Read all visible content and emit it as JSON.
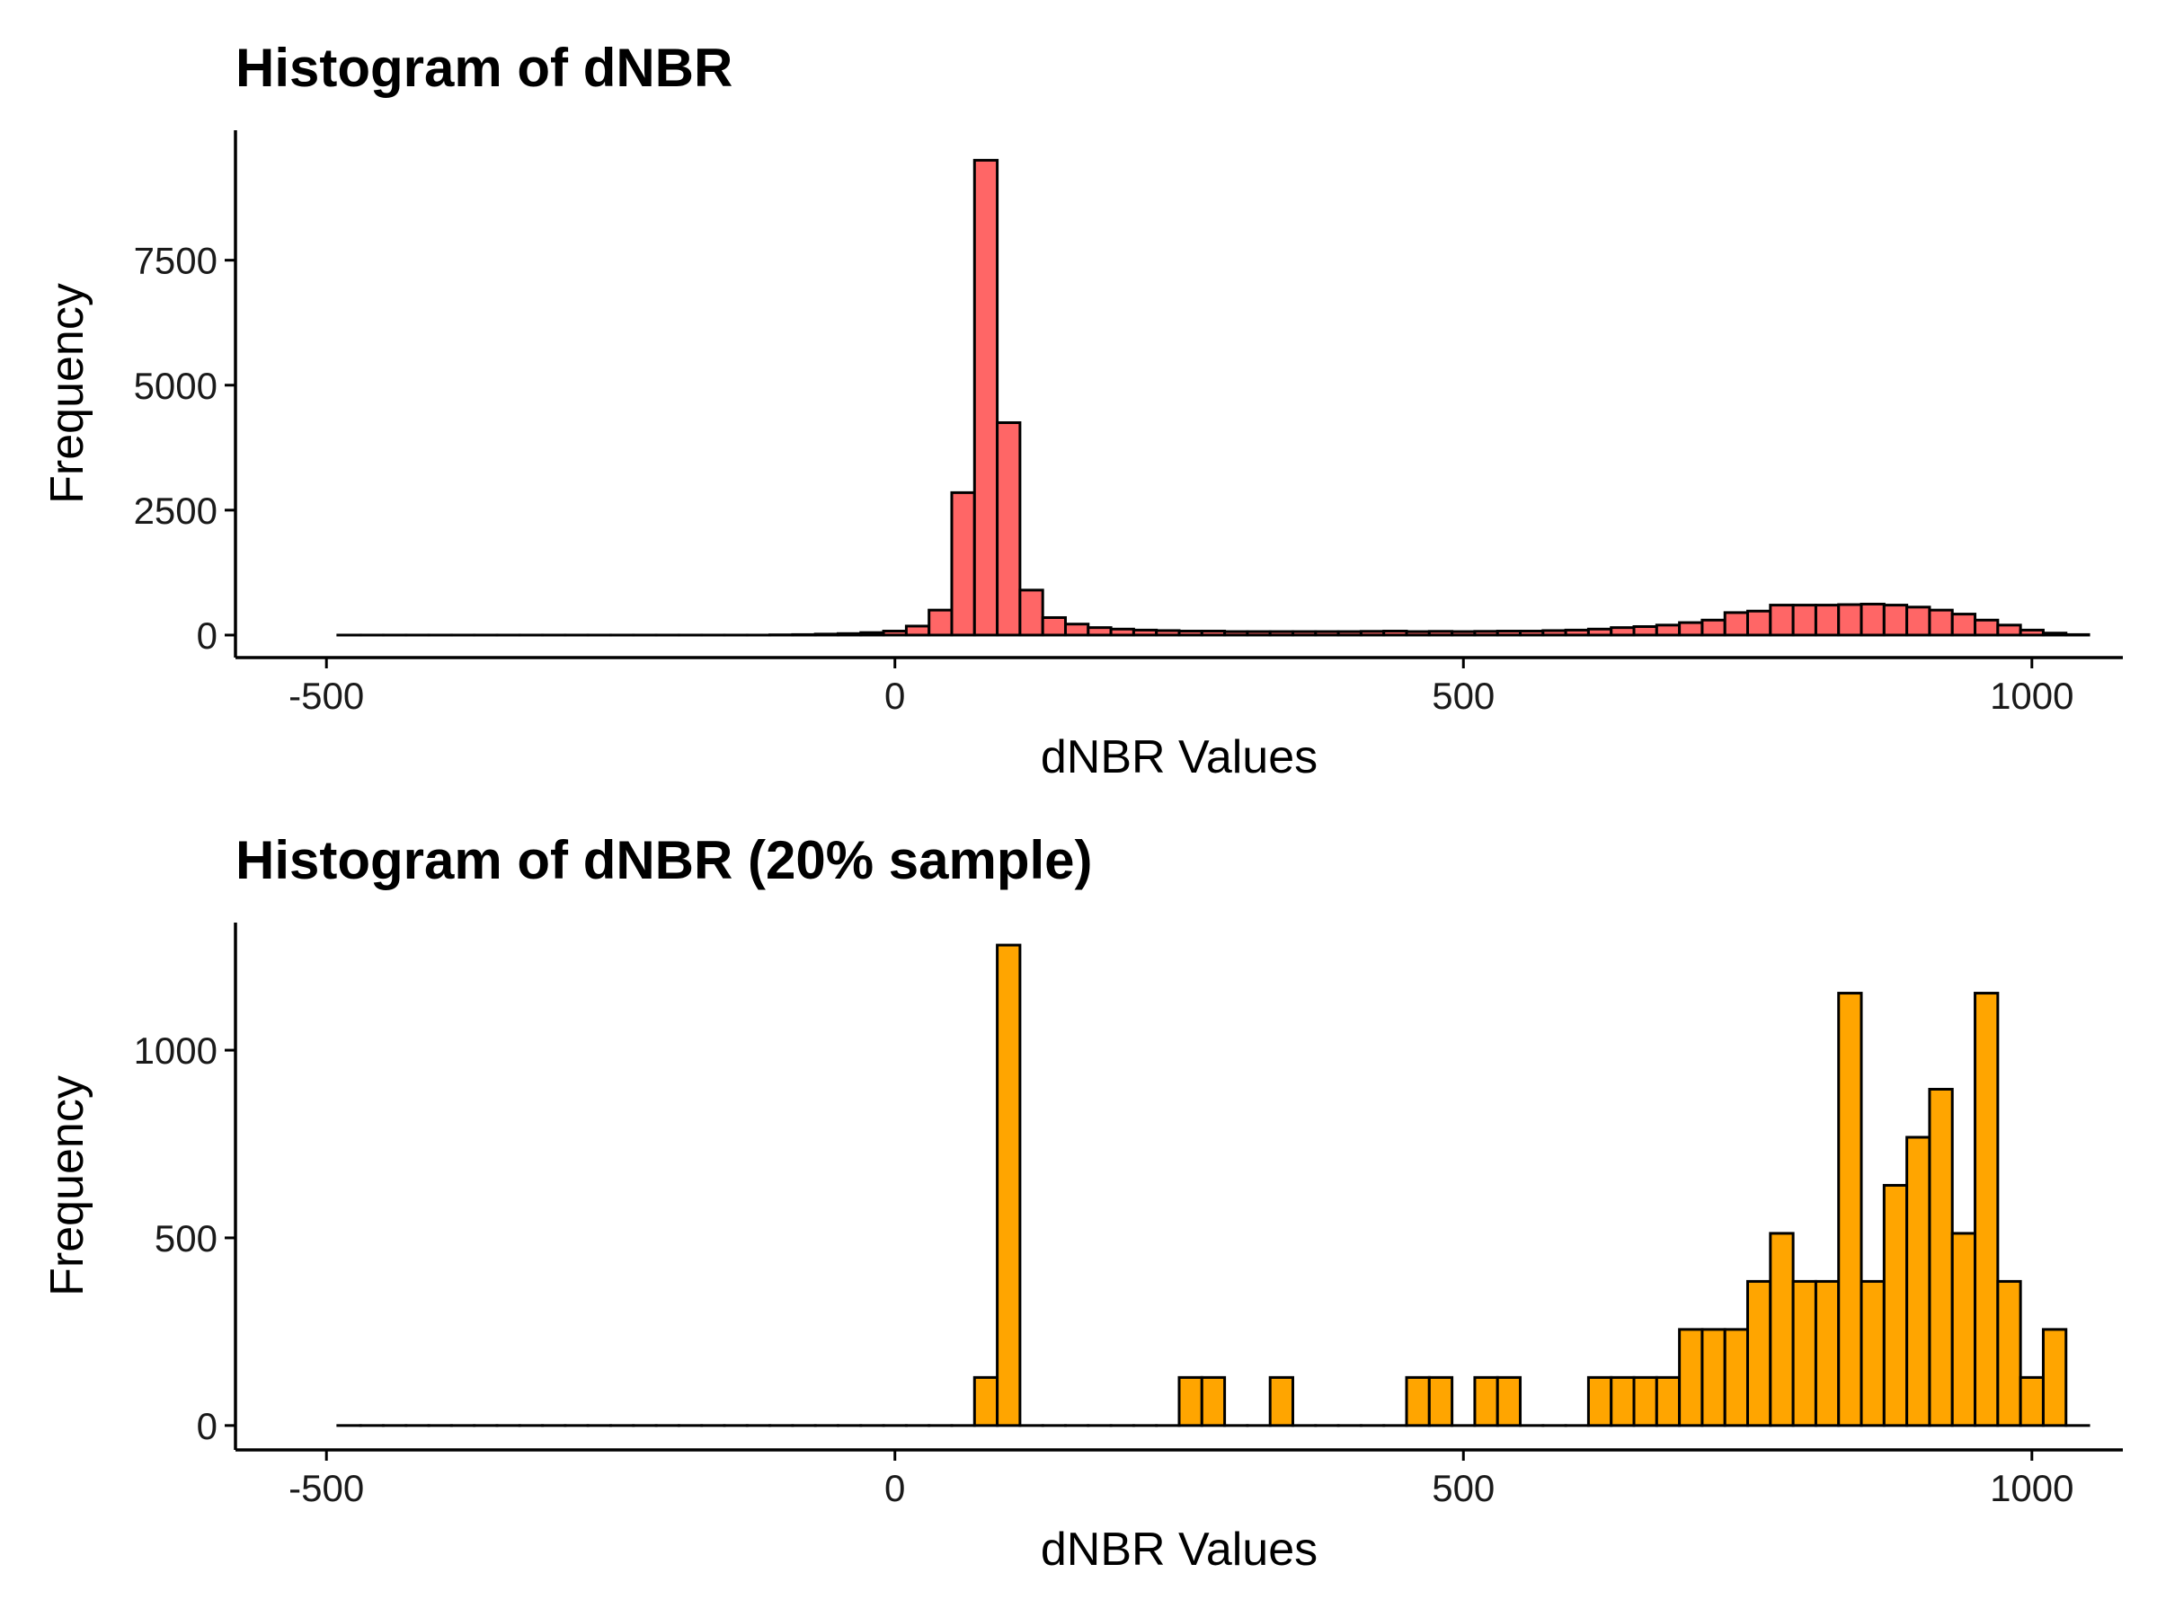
{
  "chart_data": [
    {
      "type": "bar",
      "title": "Histogram of dNBR",
      "xlabel": "dNBR Values",
      "ylabel": "Frequency",
      "xlim": [
        -580,
        1080
      ],
      "ylim": [
        -450,
        10100
      ],
      "xticks": [
        -500,
        0,
        500,
        1000
      ],
      "xtick_labels": [
        "-500",
        "0",
        "500",
        "1000"
      ],
      "yticks": [
        0,
        2500,
        5000,
        7500
      ],
      "ytick_labels": [
        "0",
        "2500",
        "5000",
        "7500"
      ],
      "bin_width": 20,
      "x_start": -490,
      "values": [
        0,
        0,
        0,
        0,
        0,
        0,
        0,
        0,
        0,
        0,
        0,
        0,
        0,
        0,
        0,
        0,
        0,
        0,
        0,
        5,
        10,
        20,
        30,
        50,
        80,
        180,
        500,
        2850,
        9500,
        4250,
        900,
        350,
        220,
        150,
        120,
        100,
        90,
        80,
        80,
        70,
        70,
        70,
        70,
        70,
        70,
        75,
        80,
        70,
        75,
        70,
        75,
        80,
        80,
        90,
        100,
        120,
        150,
        170,
        200,
        250,
        300,
        450,
        480,
        600,
        600,
        600,
        610,
        620,
        600,
        560,
        500,
        420,
        300,
        200,
        100,
        40,
        10
      ],
      "grid": false,
      "colors": {
        "fill": "#FF6666",
        "stroke": "#000000"
      }
    },
    {
      "type": "bar",
      "title": "Histogram of dNBR (20% sample)",
      "xlabel": "dNBR Values",
      "ylabel": "Frequency",
      "xlim": [
        -580,
        1080
      ],
      "ylim": [
        -65,
        1340
      ],
      "xticks": [
        -500,
        0,
        500,
        1000
      ],
      "xtick_labels": [
        "-500",
        "0",
        "500",
        "1000"
      ],
      "yticks": [
        0,
        500,
        1000
      ],
      "ytick_labels": [
        "0",
        "500",
        "1000"
      ],
      "bin_width": 20,
      "x_start": -490,
      "values": [
        0,
        0,
        0,
        0,
        0,
        0,
        0,
        0,
        0,
        0,
        0,
        0,
        0,
        0,
        0,
        0,
        0,
        0,
        0,
        0,
        0,
        0,
        0,
        0,
        0,
        0,
        0,
        0,
        128,
        1280,
        0,
        0,
        0,
        0,
        0,
        0,
        0,
        128,
        128,
        0,
        0,
        128,
        0,
        0,
        0,
        0,
        0,
        128,
        128,
        0,
        128,
        128,
        0,
        0,
        0,
        128,
        128,
        128,
        128,
        256,
        256,
        256,
        384,
        512,
        384,
        384,
        1152,
        384,
        640,
        768,
        896,
        512,
        1152,
        384,
        128,
        256,
        0
      ],
      "grid": false,
      "colors": {
        "fill": "#FFA500",
        "stroke": "#000000"
      }
    }
  ]
}
